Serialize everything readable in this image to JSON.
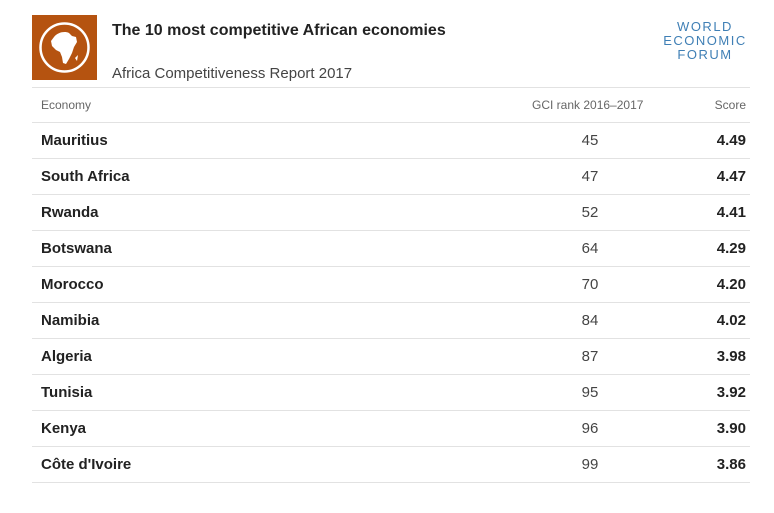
{
  "header": {
    "title": "The 10 most competitive African economies",
    "subtitle": "Africa Competitiveness Report 2017",
    "logo_icon": "africa-globe-icon",
    "logo_color": "#b55310",
    "wef_line1": "WORLD",
    "wef_line2": "ECONOMIC",
    "wef_line3": "FORUM",
    "wef_color": "#3f7fb5"
  },
  "chart_data": {
    "type": "table",
    "title": "The 10 most competitive African economies",
    "subtitle": "Africa Competitiveness Report 2017",
    "columns": [
      "Economy",
      "GCI rank 2016–2017",
      "Score"
    ],
    "rows": [
      {
        "economy": "Mauritius",
        "rank": "45",
        "score": "4.49"
      },
      {
        "economy": "South Africa",
        "rank": "47",
        "score": "4.47"
      },
      {
        "economy": "Rwanda",
        "rank": "52",
        "score": "4.41"
      },
      {
        "economy": "Botswana",
        "rank": "64",
        "score": "4.29"
      },
      {
        "economy": "Morocco",
        "rank": "70",
        "score": "4.20"
      },
      {
        "economy": "Namibia",
        "rank": "84",
        "score": "4.02"
      },
      {
        "economy": "Algeria",
        "rank": "87",
        "score": "3.98"
      },
      {
        "economy": "Tunisia",
        "rank": "95",
        "score": "3.92"
      },
      {
        "economy": "Kenya",
        "rank": "96",
        "score": "3.90"
      },
      {
        "economy": "Côte d'Ivoire",
        "rank": "99",
        "score": "3.86"
      }
    ]
  }
}
